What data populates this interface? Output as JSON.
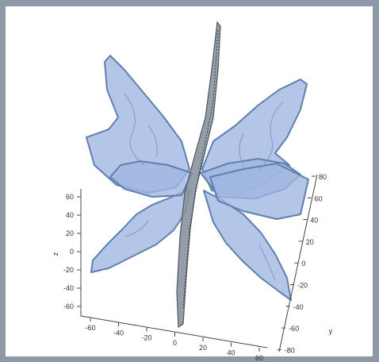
{
  "chart_data": {
    "type": "surface-3d",
    "title": "",
    "z_axis": {
      "label": "z",
      "ticks": [
        "60",
        "40",
        "20",
        "0",
        "-20",
        "-40",
        "-60"
      ]
    },
    "x_axis": {
      "label": "",
      "ticks": [
        "-60",
        "-40",
        "-20",
        "0",
        "20",
        "40",
        "60"
      ]
    },
    "y_axis": {
      "label": "y",
      "ticks": [
        "80",
        "60",
        "40",
        "20",
        "0",
        "-20",
        "-40",
        "-60",
        "-80"
      ]
    },
    "grid": false,
    "legend": "none",
    "colors": {
      "wing_fill": "#9fb6e0",
      "wing_edge": "#5f7fae",
      "center_plane": "#8a949e",
      "frame_bg": "#8d99a6"
    }
  }
}
